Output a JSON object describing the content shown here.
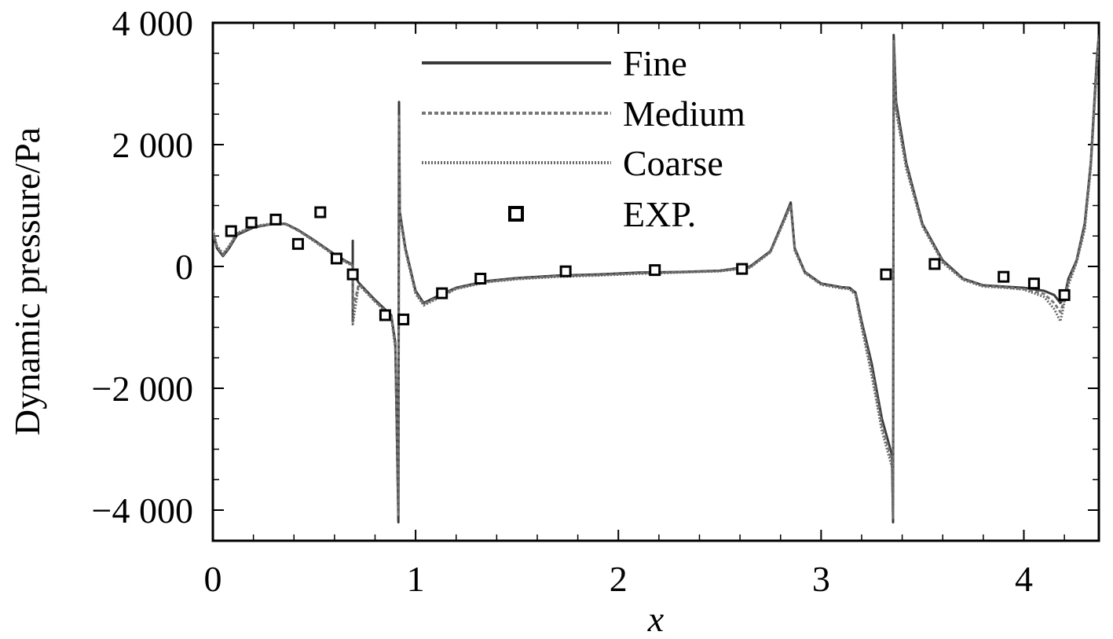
{
  "chart_data": {
    "type": "line",
    "title": "",
    "xlabel": "x",
    "ylabel": "Dynamic pressure/Pa",
    "xlim": [
      0,
      4.37
    ],
    "ylim": [
      -4450,
      4000
    ],
    "x_ticks": [
      0,
      1,
      2,
      3,
      4
    ],
    "x_tick_labels": [
      "0",
      "1",
      "2",
      "3",
      "4"
    ],
    "y_ticks": [
      -4000,
      -2000,
      0,
      2000,
      4000
    ],
    "y_tick_labels": [
      "−4 000",
      "−2 000",
      "0",
      "2 000",
      "4 000"
    ],
    "legend_placement": "top-center",
    "grid": false,
    "series": [
      {
        "name": "Fine",
        "style": "solid",
        "color": "#3a3a3a",
        "points": [
          [
            0,
            560
          ],
          [
            0.02,
            300
          ],
          [
            0.05,
            170
          ],
          [
            0.08,
            300
          ],
          [
            0.12,
            520
          ],
          [
            0.2,
            640
          ],
          [
            0.3,
            700
          ],
          [
            0.36,
            700
          ],
          [
            0.42,
            600
          ],
          [
            0.5,
            430
          ],
          [
            0.6,
            200
          ],
          [
            0.66,
            80
          ],
          [
            0.69,
            30
          ],
          [
            0.69,
            420
          ],
          [
            0.69,
            -900
          ],
          [
            0.69,
            -100
          ],
          [
            0.72,
            -270
          ],
          [
            0.8,
            -550
          ],
          [
            0.88,
            -800
          ],
          [
            0.9,
            -1250
          ],
          [
            0.915,
            -4200
          ],
          [
            0.918,
            2700
          ],
          [
            0.922,
            900
          ],
          [
            0.95,
            300
          ],
          [
            1.0,
            -400
          ],
          [
            1.04,
            -600
          ],
          [
            1.1,
            -500
          ],
          [
            1.2,
            -350
          ],
          [
            1.35,
            -240
          ],
          [
            1.5,
            -190
          ],
          [
            1.7,
            -150
          ],
          [
            1.9,
            -130
          ],
          [
            2.1,
            -100
          ],
          [
            2.3,
            -90
          ],
          [
            2.5,
            -70
          ],
          [
            2.65,
            0
          ],
          [
            2.75,
            250
          ],
          [
            2.82,
            800
          ],
          [
            2.85,
            1050
          ],
          [
            2.87,
            300
          ],
          [
            2.92,
            -90
          ],
          [
            3.0,
            -280
          ],
          [
            3.1,
            -340
          ],
          [
            3.14,
            -350
          ],
          [
            3.17,
            -430
          ],
          [
            3.2,
            -900
          ],
          [
            3.25,
            -1600
          ],
          [
            3.3,
            -2500
          ],
          [
            3.35,
            -3100
          ],
          [
            3.355,
            -4200
          ],
          [
            3.358,
            3800
          ],
          [
            3.37,
            2700
          ],
          [
            3.42,
            1700
          ],
          [
            3.5,
            700
          ],
          [
            3.6,
            100
          ],
          [
            3.7,
            -200
          ],
          [
            3.8,
            -310
          ],
          [
            3.9,
            -330
          ],
          [
            4.0,
            -350
          ],
          [
            4.1,
            -400
          ],
          [
            4.15,
            -470
          ],
          [
            4.18,
            -600
          ],
          [
            4.2,
            -500
          ],
          [
            4.22,
            -200
          ],
          [
            4.26,
            100
          ],
          [
            4.3,
            700
          ],
          [
            4.33,
            1700
          ],
          [
            4.36,
            3400
          ],
          [
            4.37,
            3800
          ]
        ]
      },
      {
        "name": "Medium",
        "style": "dashed",
        "color": "#777777",
        "points": [
          [
            0,
            580
          ],
          [
            0.02,
            320
          ],
          [
            0.05,
            190
          ],
          [
            0.08,
            320
          ],
          [
            0.12,
            540
          ],
          [
            0.2,
            650
          ],
          [
            0.3,
            700
          ],
          [
            0.36,
            690
          ],
          [
            0.42,
            590
          ],
          [
            0.5,
            420
          ],
          [
            0.6,
            190
          ],
          [
            0.66,
            70
          ],
          [
            0.69,
            20
          ],
          [
            0.69,
            -700
          ],
          [
            0.72,
            -290
          ],
          [
            0.8,
            -570
          ],
          [
            0.88,
            -820
          ],
          [
            0.9,
            -1300
          ],
          [
            0.915,
            -4100
          ],
          [
            0.918,
            2500
          ],
          [
            0.922,
            850
          ],
          [
            0.95,
            270
          ],
          [
            1.0,
            -430
          ],
          [
            1.04,
            -620
          ],
          [
            1.1,
            -520
          ],
          [
            1.2,
            -360
          ],
          [
            1.35,
            -250
          ],
          [
            1.5,
            -200
          ],
          [
            1.7,
            -160
          ],
          [
            1.9,
            -140
          ],
          [
            2.1,
            -110
          ],
          [
            2.3,
            -95
          ],
          [
            2.5,
            -75
          ],
          [
            2.65,
            -10
          ],
          [
            2.75,
            240
          ],
          [
            2.82,
            780
          ],
          [
            2.85,
            1020
          ],
          [
            2.87,
            280
          ],
          [
            2.92,
            -100
          ],
          [
            3.0,
            -290
          ],
          [
            3.1,
            -350
          ],
          [
            3.14,
            -360
          ],
          [
            3.17,
            -450
          ],
          [
            3.2,
            -950
          ],
          [
            3.25,
            -1700
          ],
          [
            3.3,
            -2600
          ],
          [
            3.35,
            -3200
          ],
          [
            3.355,
            -4100
          ],
          [
            3.358,
            3700
          ],
          [
            3.37,
            2600
          ],
          [
            3.42,
            1650
          ],
          [
            3.5,
            680
          ],
          [
            3.6,
            80
          ],
          [
            3.7,
            -210
          ],
          [
            3.8,
            -320
          ],
          [
            3.9,
            -340
          ],
          [
            4.0,
            -370
          ],
          [
            4.1,
            -450
          ],
          [
            4.15,
            -600
          ],
          [
            4.18,
            -750
          ],
          [
            4.2,
            -550
          ],
          [
            4.22,
            -250
          ],
          [
            4.26,
            80
          ],
          [
            4.3,
            650
          ],
          [
            4.33,
            1650
          ],
          [
            4.36,
            3300
          ],
          [
            4.37,
            3750
          ]
        ]
      },
      {
        "name": "Coarse",
        "style": "dotted",
        "color": "#6a6a6a",
        "points": [
          [
            0,
            600
          ],
          [
            0.02,
            340
          ],
          [
            0.05,
            210
          ],
          [
            0.08,
            340
          ],
          [
            0.12,
            550
          ],
          [
            0.2,
            660
          ],
          [
            0.3,
            710
          ],
          [
            0.36,
            695
          ],
          [
            0.42,
            595
          ],
          [
            0.5,
            410
          ],
          [
            0.6,
            180
          ],
          [
            0.66,
            60
          ],
          [
            0.69,
            10
          ],
          [
            0.69,
            -950
          ],
          [
            0.72,
            -300
          ],
          [
            0.8,
            -580
          ],
          [
            0.88,
            -830
          ],
          [
            0.9,
            -1350
          ],
          [
            0.915,
            -4050
          ],
          [
            0.918,
            2450
          ],
          [
            0.922,
            820
          ],
          [
            0.95,
            250
          ],
          [
            1.0,
            -450
          ],
          [
            1.04,
            -640
          ],
          [
            1.1,
            -540
          ],
          [
            1.2,
            -370
          ],
          [
            1.35,
            -260
          ],
          [
            1.5,
            -210
          ],
          [
            1.7,
            -170
          ],
          [
            1.9,
            -150
          ],
          [
            2.1,
            -120
          ],
          [
            2.3,
            -100
          ],
          [
            2.5,
            -80
          ],
          [
            2.65,
            -20
          ],
          [
            2.75,
            230
          ],
          [
            2.82,
            760
          ],
          [
            2.85,
            1000
          ],
          [
            2.87,
            260
          ],
          [
            2.92,
            -110
          ],
          [
            3.0,
            -300
          ],
          [
            3.1,
            -360
          ],
          [
            3.14,
            -370
          ],
          [
            3.17,
            -470
          ],
          [
            3.2,
            -1000
          ],
          [
            3.25,
            -1800
          ],
          [
            3.3,
            -2700
          ],
          [
            3.35,
            -3300
          ],
          [
            3.355,
            -4150
          ],
          [
            3.358,
            3650
          ],
          [
            3.37,
            2550
          ],
          [
            3.42,
            1600
          ],
          [
            3.5,
            660
          ],
          [
            3.6,
            60
          ],
          [
            3.7,
            -220
          ],
          [
            3.8,
            -330
          ],
          [
            3.9,
            -350
          ],
          [
            4.0,
            -380
          ],
          [
            4.1,
            -500
          ],
          [
            4.15,
            -700
          ],
          [
            4.18,
            -900
          ],
          [
            4.2,
            -600
          ],
          [
            4.22,
            -300
          ],
          [
            4.26,
            60
          ],
          [
            4.3,
            600
          ],
          [
            4.33,
            1600
          ],
          [
            4.36,
            3250
          ],
          [
            4.37,
            3700
          ]
        ]
      },
      {
        "name": "EXP.",
        "style": "markers",
        "marker": "square",
        "color": "#000000",
        "points": [
          [
            0.09,
            580
          ],
          [
            0.19,
            720
          ],
          [
            0.31,
            770
          ],
          [
            0.42,
            370
          ],
          [
            0.53,
            890
          ],
          [
            0.61,
            130
          ],
          [
            0.69,
            -130
          ],
          [
            0.85,
            -800
          ],
          [
            0.94,
            -870
          ],
          [
            1.13,
            -440
          ],
          [
            1.32,
            -200
          ],
          [
            1.74,
            -80
          ],
          [
            2.18,
            -60
          ],
          [
            2.61,
            -40
          ],
          [
            3.32,
            -130
          ],
          [
            3.56,
            40
          ],
          [
            3.9,
            -170
          ],
          [
            4.05,
            -280
          ],
          [
            4.2,
            -470
          ]
        ]
      }
    ]
  }
}
